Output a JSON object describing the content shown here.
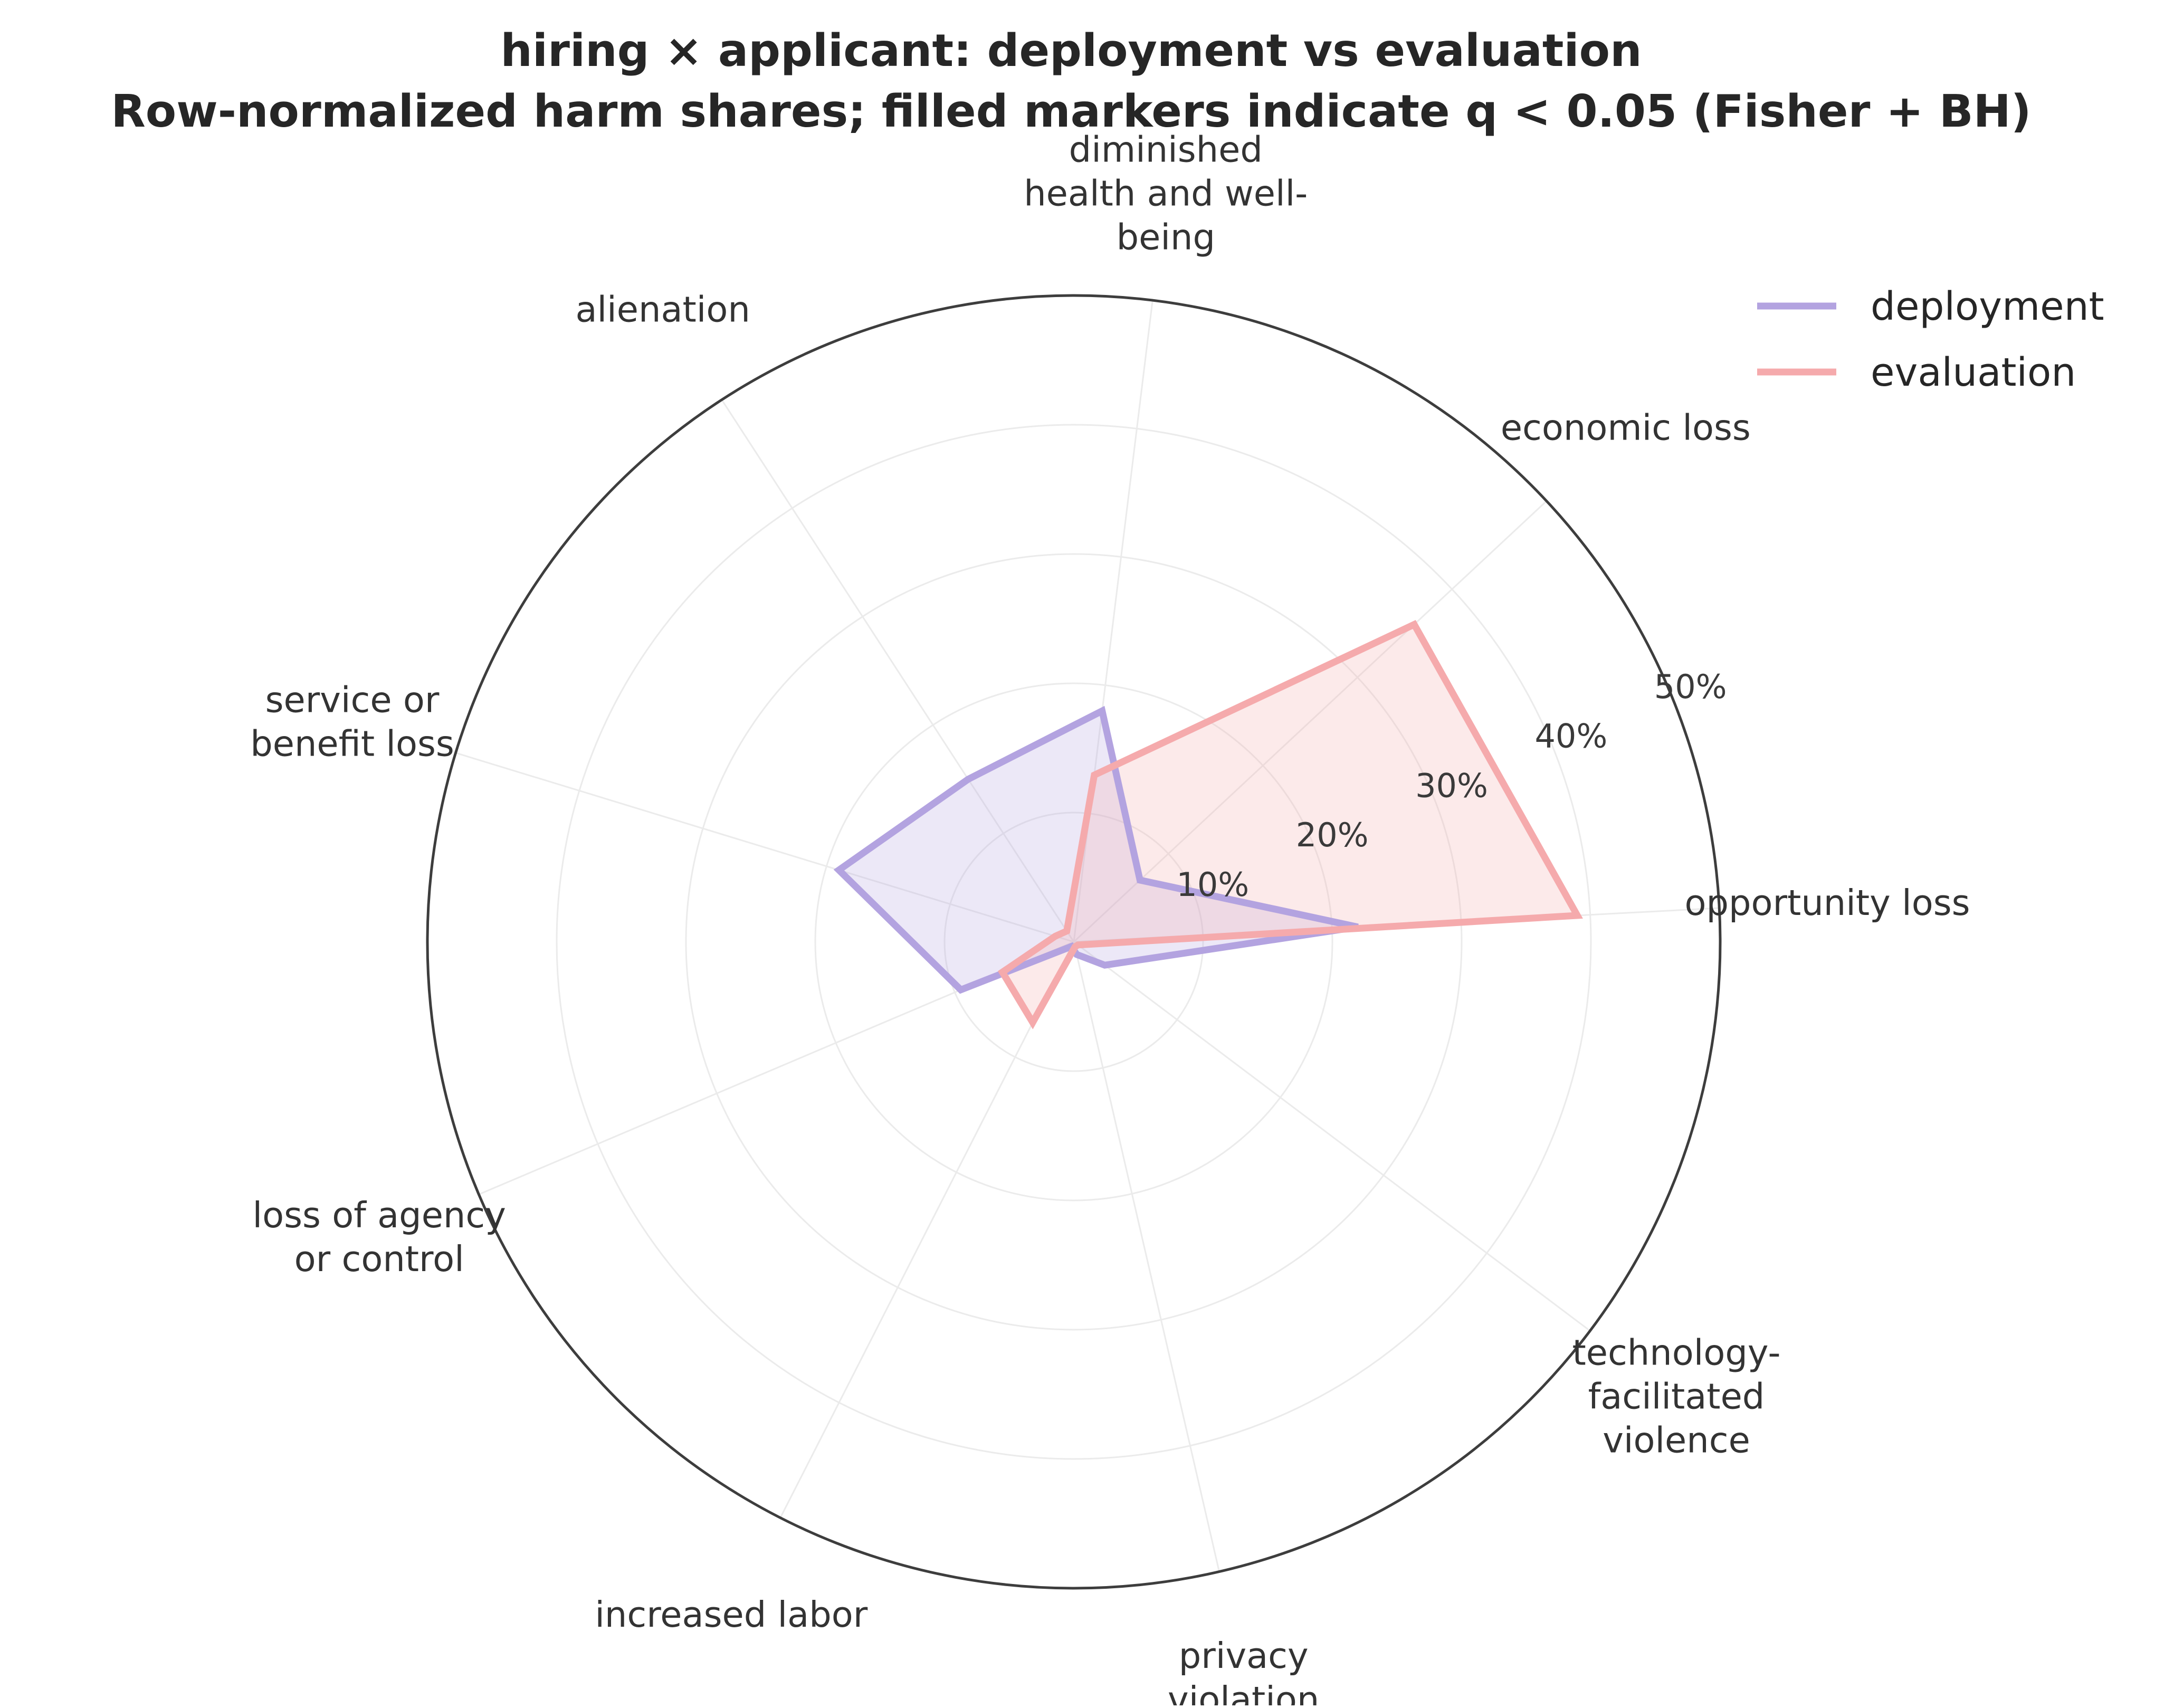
{
  "chart_data": {
    "type": "radar",
    "title_line1": "hiring × applicant: deployment vs evaluation",
    "title_line2": "Row-normalized harm shares; filled markers indicate q < 0.05 (Fisher + BH)",
    "categories": [
      "opportunity loss",
      "economic loss",
      "diminished health and well-being",
      "alienation",
      "service or benefit loss",
      "loss of agency or control",
      "increased labor",
      "privacy violation",
      "technology-facilitated violence"
    ],
    "category_display": [
      [
        "opportunity loss"
      ],
      [
        "economic loss"
      ],
      [
        "diminished",
        "health and well-",
        "being"
      ],
      [
        "alienation"
      ],
      [
        "service or",
        "benefit loss"
      ],
      [
        "loss of agency",
        "or control"
      ],
      [
        "increased labor"
      ],
      [
        "privacy",
        "violation"
      ],
      [
        "technology-",
        "facilitated",
        "violence"
      ]
    ],
    "r_ticks": [
      10,
      20,
      30,
      40,
      50
    ],
    "r_tick_labels": [
      "10%",
      "20%",
      "30%",
      "40%",
      "50%"
    ],
    "rlim": [
      0,
      50
    ],
    "grid": true,
    "legend_position": "top-right",
    "series": [
      {
        "name": "deployment",
        "color": "#b3a3e0",
        "values": [
          22.0,
          7.0,
          18.0,
          15.0,
          19.0,
          9.5,
          0.4,
          1.0,
          3.0
        ]
      },
      {
        "name": "evaluation",
        "color": "#f5aaac",
        "values": [
          39.0,
          36.0,
          13.0,
          1.0,
          1.5,
          6.0,
          7.0,
          0.4,
          0.4
        ]
      }
    ]
  }
}
